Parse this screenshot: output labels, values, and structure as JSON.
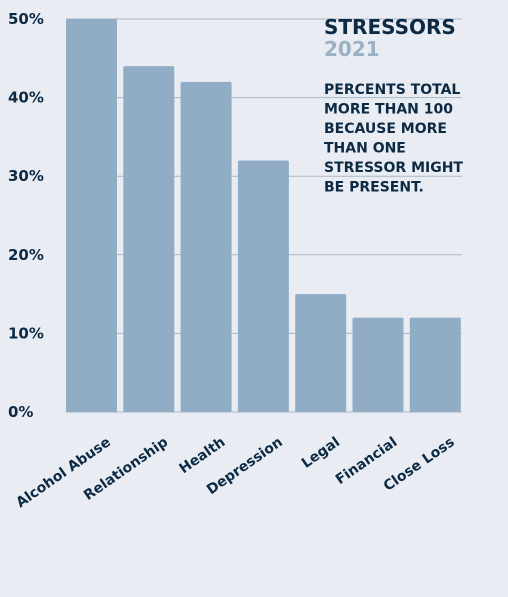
{
  "chart_data": {
    "type": "bar",
    "title": "STRESSORS",
    "subtitle": "2021",
    "annotation_lines": [
      "PERCENTS TOTAL",
      "MORE THAN 100",
      "BECAUSE MORE",
      "THAN ONE",
      "STRESSOR MIGHT",
      "BE PRESENT."
    ],
    "categories": [
      "Alcohol Abuse",
      "Relationship",
      "Health",
      "Depression",
      "Legal",
      "Financial",
      "Close Loss"
    ],
    "values": [
      50,
      44,
      42,
      32,
      15,
      12,
      12
    ],
    "yticks": [
      "0%",
      "10%",
      "20%",
      "30%",
      "40%",
      "50%"
    ],
    "ylim": [
      0,
      50
    ],
    "grid": true,
    "colors": {
      "bar": "#91adc6",
      "grid": "#a9b7c6",
      "text": "#0d2a44",
      "subtitle": "#9ab0c5"
    }
  }
}
